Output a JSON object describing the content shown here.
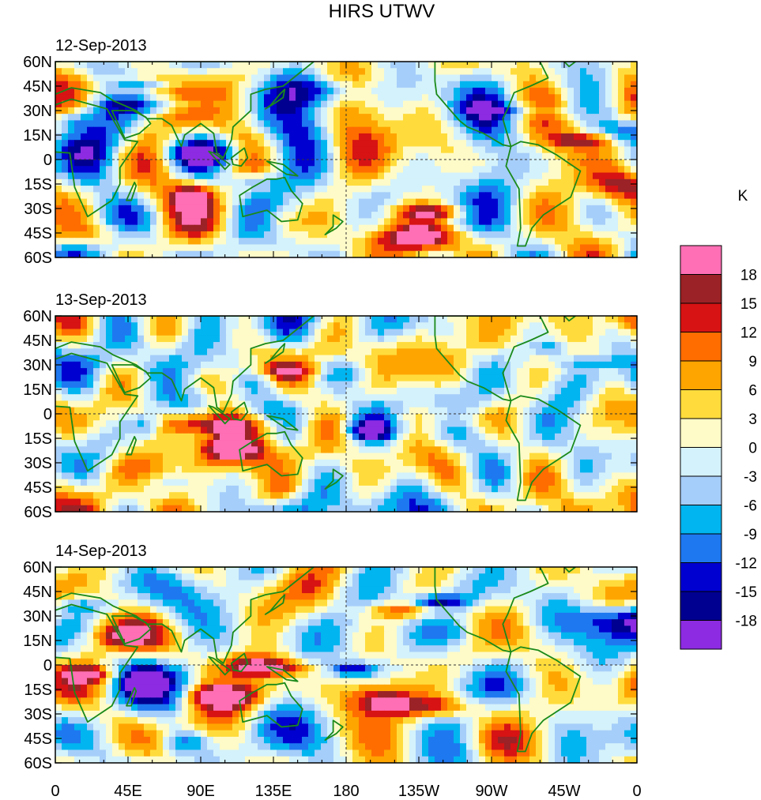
{
  "chart_data": {
    "type": "heatmap",
    "title": "HIRS UTWV",
    "panels": [
      {
        "date": "12-Sep-2013"
      },
      {
        "date": "13-Sep-2013"
      },
      {
        "date": "14-Sep-2013"
      }
    ],
    "xlabel": "",
    "ylabel": "",
    "xrange": [
      0,
      360
    ],
    "yrange": [
      -60,
      60
    ],
    "x_ticks": [
      "0",
      "45E",
      "90E",
      "135E",
      "180",
      "135W",
      "90W",
      "45W",
      "0"
    ],
    "y_ticks": [
      "60N",
      "45N",
      "30N",
      "15N",
      "0",
      "15S",
      "30S",
      "45S",
      "60S"
    ],
    "colorbar": {
      "unit": "K",
      "levels": [
        "18",
        "15",
        "12",
        "9",
        "6",
        "3",
        "0",
        "-3",
        "-6",
        "-9",
        "-12",
        "-15",
        "-18"
      ],
      "colors": [
        "#ff6fb5",
        "#9b2226",
        "#d71313",
        "#ff6d00",
        "#ffa500",
        "#ffdc3c",
        "#fffbc8",
        "#d4f2fb",
        "#a6cefa",
        "#00b5f0",
        "#1e78f0",
        "#0000d0",
        "#000090",
        "#8c2be2"
      ]
    },
    "gridlines": "dashed equator and dateline",
    "coastlines_color": "#1a8a1a"
  }
}
